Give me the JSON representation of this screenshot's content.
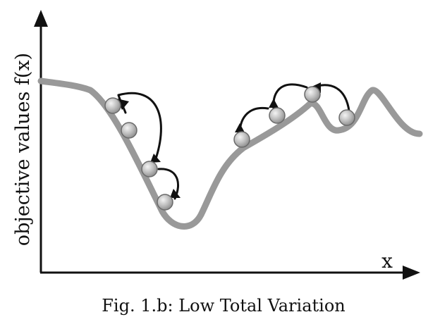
{
  "figure": {
    "caption": "Fig. 1.b: Low Total Variation",
    "y_axis_label": "objective values f(x)",
    "x_axis_label": "x"
  },
  "colors": {
    "curve": "#999999",
    "axis": "#111111",
    "arrow": "#111111",
    "ball_light": "#f4f4f4",
    "ball_dark": "#8a8a8a",
    "ball_edge": "#6a6a6a"
  },
  "diagram": {
    "balls": [
      "ball-1",
      "ball-2",
      "ball-3",
      "ball-4",
      "ball-5",
      "ball-6",
      "ball-7",
      "ball-8"
    ],
    "arrows": [
      "arrow-1",
      "arrow-2",
      "arrow-3",
      "arrow-4",
      "arrow-5",
      "arrow-6"
    ]
  }
}
